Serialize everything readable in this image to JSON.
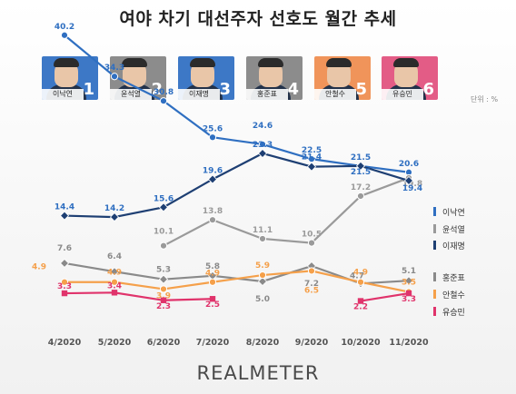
{
  "title": "여야 차기 대선주자 선호도 월간 추세",
  "unit": "단위 : %",
  "brand": "REALMETER",
  "candidates": [
    {
      "name": "이낙연",
      "rank": "1",
      "color": "#3d78c6"
    },
    {
      "name": "윤석열",
      "rank": "2",
      "color": "#8c8c8c"
    },
    {
      "name": "이재명",
      "rank": "3",
      "color": "#3d78c6"
    },
    {
      "name": "홍준표",
      "rank": "4",
      "color": "#8c8c8c"
    },
    {
      "name": "안철수",
      "rank": "5",
      "color": "#f0945a"
    },
    {
      "name": "유승민",
      "rank": "6",
      "color": "#e35c86"
    }
  ],
  "chart_data": {
    "type": "line",
    "x": [
      "4/2020",
      "5/2020",
      "6/2020",
      "7/2020",
      "8/2020",
      "9/2020",
      "10/2020",
      "11/2020"
    ],
    "series": [
      {
        "name": "이낙연",
        "color": "#2f6fc1",
        "marker": "circle",
        "values": [
          40.2,
          34.3,
          30.8,
          25.6,
          24.6,
          22.5,
          21.5,
          20.6
        ],
        "labels": [
          "40.2",
          "34.3",
          "30.8",
          "25.6",
          "24.6",
          "22.5",
          "21.5",
          "20.6"
        ]
      },
      {
        "name": "윤석열",
        "color": "#9a9a9a",
        "marker": "circle",
        "values": [
          null,
          null,
          10.1,
          13.8,
          11.1,
          10.5,
          17.2,
          19.8
        ],
        "labels": [
          "",
          "",
          "10.1",
          "13.8",
          "11.1",
          "10.5",
          "17.2",
          "19.8"
        ]
      },
      {
        "name": "이재명",
        "color": "#1e3f73",
        "marker": "diamond",
        "values": [
          14.4,
          14.2,
          15.6,
          19.6,
          23.3,
          21.4,
          21.5,
          19.4
        ],
        "labels": [
          "14.4",
          "14.2",
          "15.6",
          "19.6",
          "23.3",
          "21.4",
          "21.5",
          "19.4"
        ]
      },
      {
        "name": "홍준표",
        "color": "#8a8a8a",
        "marker": "diamond",
        "values": [
          7.6,
          6.4,
          5.3,
          5.8,
          5.0,
          7.2,
          4.7,
          5.1
        ],
        "labels": [
          "7.6",
          "6.4",
          "5.3",
          "5.8",
          "5.0",
          "7.2",
          "4.7",
          "5.1"
        ]
      },
      {
        "name": "안철수",
        "color": "#f5a04a",
        "marker": "circle",
        "values": [
          4.9,
          4.9,
          3.9,
          4.9,
          5.9,
          6.5,
          4.9,
          3.5
        ],
        "labels": [
          "4.9",
          "4.9",
          "3.9",
          "4.9",
          "5.9",
          "6.5",
          "4.9",
          "3.5"
        ]
      },
      {
        "name": "유승민",
        "color": "#e0336b",
        "marker": "square",
        "values": [
          3.3,
          3.4,
          2.3,
          2.5,
          null,
          null,
          2.2,
          3.3
        ],
        "labels": [
          "3.3",
          "3.4",
          "2.3",
          "2.5",
          "",
          "",
          "2.2",
          "3.3"
        ]
      }
    ],
    "legend": [
      "이낙연",
      "윤석열",
      "이재명",
      "홍준표",
      "안철수",
      "유승민"
    ],
    "legend_position": "right",
    "grid": false
  }
}
